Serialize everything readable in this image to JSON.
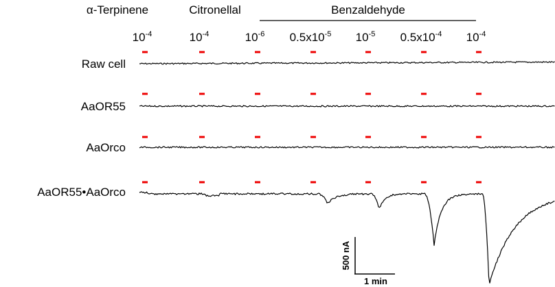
{
  "header": {
    "odorants": [
      "α-Terpinene",
      "Citronellal"
    ],
    "group_label": "Benzaldehyde"
  },
  "concentrations": [
    {
      "base": "10",
      "exponent": "-4"
    },
    {
      "base": "10",
      "exponent": "-4"
    },
    {
      "base": "10",
      "exponent": "-6"
    },
    {
      "base": "0.5x10",
      "exponent": "-5"
    },
    {
      "base": "10",
      "exponent": "-5"
    },
    {
      "base": "0.5x10",
      "exponent": "-4"
    },
    {
      "base": "10",
      "exponent": "-4"
    }
  ],
  "rows": [
    "Raw cell",
    "AaOR55",
    "AaOrco",
    "AaOR55•AaOrco"
  ],
  "scale_bar": {
    "vertical": "500 nA",
    "horizontal": "1 min"
  }
}
